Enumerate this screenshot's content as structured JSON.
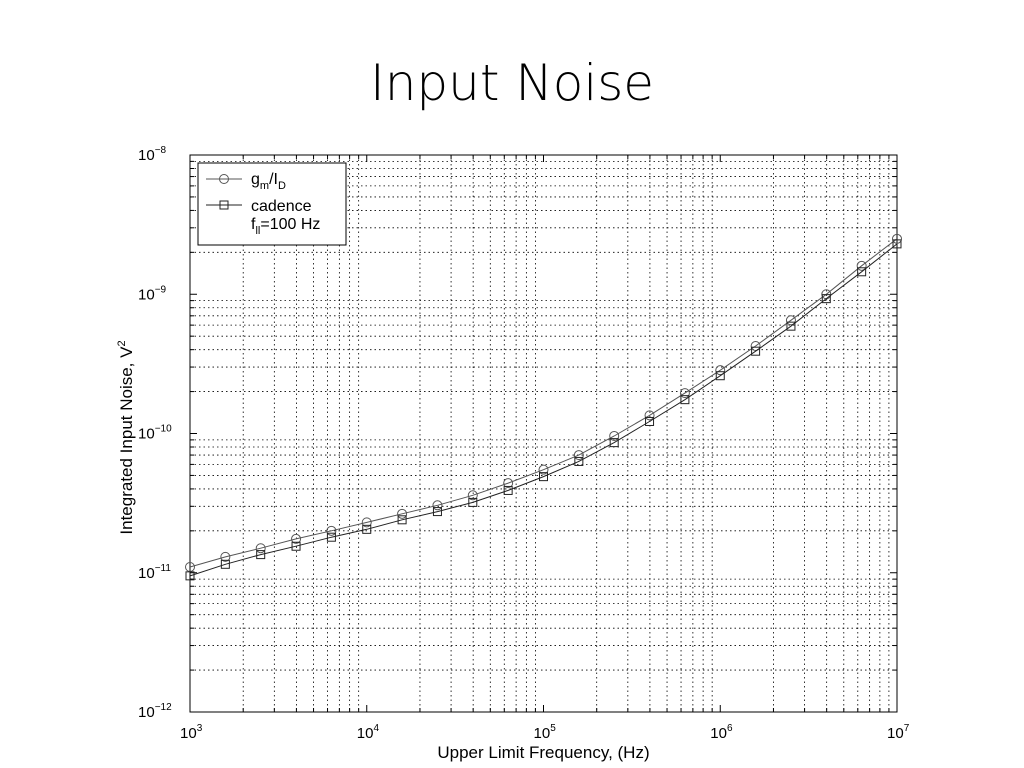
{
  "slide": {
    "title": "Input Noise"
  },
  "chart_data": {
    "type": "line",
    "title": "",
    "xlabel": "Upper Limit Frequency, (Hz)",
    "ylabel": "Integrated Input Noise, V",
    "ylabel_superscript": "2",
    "x_scale": "log",
    "y_scale": "log",
    "xlim": [
      1000,
      10000000
    ],
    "ylim": [
      1e-12,
      1e-08
    ],
    "x_ticks": [
      {
        "base": "10",
        "exp": "3"
      },
      {
        "base": "10",
        "exp": "4"
      },
      {
        "base": "10",
        "exp": "5"
      },
      {
        "base": "10",
        "exp": "6"
      },
      {
        "base": "10",
        "exp": "7"
      }
    ],
    "y_ticks": [
      {
        "base": "10",
        "exp": "−12"
      },
      {
        "base": "10",
        "exp": "−11"
      },
      {
        "base": "10",
        "exp": "−10"
      },
      {
        "base": "10",
        "exp": "−9"
      },
      {
        "base": "10",
        "exp": "−8"
      }
    ],
    "grid": true,
    "legend_position": "top-left",
    "series": [
      {
        "name": "g",
        "name_sub": "m",
        "name_mid": "/I",
        "name_sub2": "D",
        "marker": "circle",
        "color": "#555555",
        "x": [
          1000,
          1585,
          2512,
          3981,
          6310,
          10000,
          15849,
          25119,
          39811,
          63096,
          100000,
          158489,
          251189,
          398107,
          630957,
          1000000,
          1584893,
          2511886,
          3981072,
          6309573,
          10000000
        ],
        "y": [
          1.1e-11,
          1.3e-11,
          1.5e-11,
          1.75e-11,
          2e-11,
          2.3e-11,
          2.65e-11,
          3.05e-11,
          3.6e-11,
          4.4e-11,
          5.5e-11,
          7e-11,
          9.6e-11,
          1.35e-10,
          1.95e-10,
          2.85e-10,
          4.25e-10,
          6.5e-10,
          1e-09,
          1.6e-09,
          2.5e-09
        ]
      },
      {
        "name": "cadence",
        "name_line2": "f",
        "name_line2_sub": "ll",
        "name_line2_rest": "=100 Hz",
        "marker": "square",
        "color": "#222222",
        "x": [
          1000,
          1585,
          2512,
          3981,
          6310,
          10000,
          15849,
          25119,
          39811,
          63096,
          100000,
          158489,
          251189,
          398107,
          630957,
          1000000,
          1584893,
          2511886,
          3981072,
          6309573,
          10000000
        ],
        "y": [
          9.5e-12,
          1.15e-11,
          1.35e-11,
          1.55e-11,
          1.8e-11,
          2.05e-11,
          2.4e-11,
          2.75e-11,
          3.2e-11,
          3.9e-11,
          4.9e-11,
          6.3e-11,
          8.6e-11,
          1.22e-10,
          1.75e-10,
          2.6e-10,
          3.9e-10,
          5.9e-10,
          9.3e-10,
          1.45e-09,
          2.3e-09
        ]
      }
    ]
  }
}
